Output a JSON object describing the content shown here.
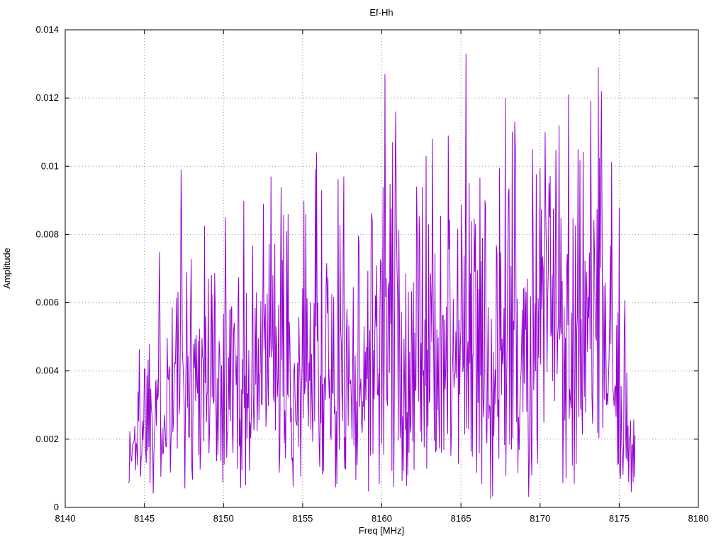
{
  "page": {
    "background": "#ffffff"
  },
  "chart_data": {
    "type": "line",
    "title": "Ef-Hh",
    "xlabel": "Freq [MHz]",
    "ylabel": "Amplitude",
    "xlim": [
      8140,
      8180
    ],
    "ylim": [
      0,
      0.014
    ],
    "x_ticks": [
      8140,
      8145,
      8150,
      8155,
      8160,
      8165,
      8170,
      8175,
      8180
    ],
    "x_tick_labels": [
      "8140",
      "8145",
      "8150",
      "8155",
      "8160",
      "8165",
      "8170",
      "8175",
      "8180"
    ],
    "y_ticks": [
      0,
      0.002,
      0.004,
      0.006,
      0.008,
      0.01,
      0.012,
      0.014
    ],
    "y_tick_labels": [
      "0",
      "0.002",
      "0.004",
      "0.006",
      "0.008",
      "0.01",
      "0.012",
      "0.014"
    ],
    "grid": true,
    "grid_style": "dotted",
    "legend": "none",
    "line_color": "#9400d3",
    "border_color": "#000000",
    "signal_range": [
      8144,
      8176
    ],
    "sample_step_mhz": 0.04,
    "noise_seed": 1337,
    "envelope": [
      [
        8144.0,
        0.0018
      ],
      [
        8144.5,
        0.0028
      ],
      [
        8145.0,
        0.004
      ],
      [
        8146.0,
        0.0048
      ],
      [
        8147.0,
        0.005
      ],
      [
        8148.0,
        0.0052
      ],
      [
        8149.0,
        0.0052
      ],
      [
        8150.0,
        0.005
      ],
      [
        8151.0,
        0.0048
      ],
      [
        8152.0,
        0.005
      ],
      [
        8153.0,
        0.0052
      ],
      [
        8154.0,
        0.005
      ],
      [
        8155.0,
        0.0048
      ],
      [
        8156.0,
        0.0055
      ],
      [
        8157.0,
        0.0052
      ],
      [
        8158.0,
        0.0052
      ],
      [
        8159.0,
        0.0055
      ],
      [
        8160.0,
        0.006
      ],
      [
        8161.0,
        0.006
      ],
      [
        8162.0,
        0.0055
      ],
      [
        8163.0,
        0.0058
      ],
      [
        8164.0,
        0.006
      ],
      [
        8165.0,
        0.006
      ],
      [
        8166.0,
        0.0058
      ],
      [
        8167.0,
        0.006
      ],
      [
        8168.0,
        0.0065
      ],
      [
        8169.0,
        0.0068
      ],
      [
        8170.0,
        0.0068
      ],
      [
        8171.0,
        0.007
      ],
      [
        8172.0,
        0.0068
      ],
      [
        8173.0,
        0.0065
      ],
      [
        8174.0,
        0.0062
      ],
      [
        8175.0,
        0.0048
      ],
      [
        8175.5,
        0.0035
      ],
      [
        8176.0,
        0.0015
      ]
    ],
    "peaks": [
      [
        8147.3,
        0.0099
      ],
      [
        8148.8,
        0.00825
      ],
      [
        8150.1,
        0.0085
      ],
      [
        8153.0,
        0.0097
      ],
      [
        8154.0,
        0.0081
      ],
      [
        8155.2,
        0.0086
      ],
      [
        8155.9,
        0.0104
      ],
      [
        8156.2,
        0.0093
      ],
      [
        8157.6,
        0.0097
      ],
      [
        8159.4,
        0.0084
      ],
      [
        8160.2,
        0.0127
      ],
      [
        8160.9,
        0.0116
      ],
      [
        8162.8,
        0.0103
      ],
      [
        8164.2,
        0.0109
      ],
      [
        8165.3,
        0.0133
      ],
      [
        8166.5,
        0.009
      ],
      [
        8167.8,
        0.012
      ],
      [
        8168.4,
        0.0113
      ],
      [
        8169.5,
        0.0105
      ],
      [
        8170.3,
        0.011
      ],
      [
        8171.2,
        0.0112
      ],
      [
        8171.8,
        0.0121
      ],
      [
        8172.4,
        0.0105
      ],
      [
        8173.7,
        0.0129
      ],
      [
        8173.9,
        0.0122
      ]
    ]
  }
}
